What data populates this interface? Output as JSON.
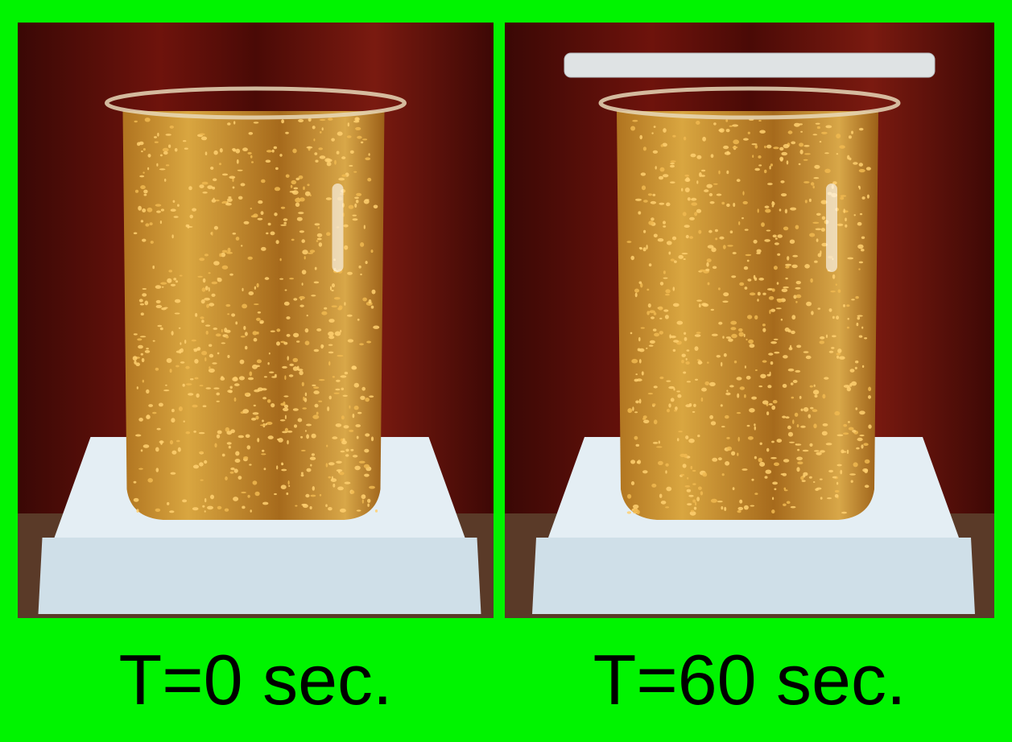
{
  "panels": [
    {
      "caption": "T=0 sec."
    },
    {
      "caption": "T=60 sec."
    }
  ]
}
